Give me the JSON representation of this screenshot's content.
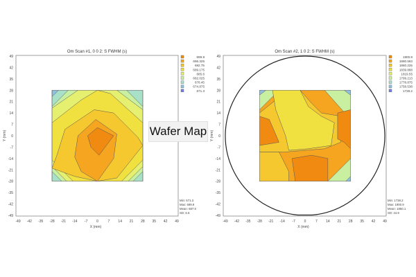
{
  "overlay_label": "Wafer Map",
  "chart_data": [
    {
      "type": "heatmap",
      "title": "Om Scan #1, 0 0 2: S FWHM (s)",
      "xlabel": "X (mm)",
      "ylabel": "Y (mm)",
      "xlim": [
        -49,
        49
      ],
      "ylim": [
        -49,
        49
      ],
      "ticks": [
        -49,
        -42,
        -35,
        -28,
        -21,
        -14,
        -7,
        0,
        7,
        14,
        21,
        28,
        35,
        42,
        49
      ],
      "scan_area": [
        -28,
        28
      ],
      "legend": [
        "699.9",
        "696.325",
        "692.75",
        "689.175",
        "685.6",
        "682.025",
        "678.45",
        "674.875",
        "671.3"
      ],
      "legend_colors": [
        "#f08a10",
        "#f5a520",
        "#f5c830",
        "#f0e040",
        "#e6f070",
        "#c8f0a0",
        "#a8e0c8",
        "#90c0e0",
        "#7080e0"
      ],
      "stats": [
        "Min: 671.3",
        "Max: 699.9",
        "Mean: 687.6",
        "SD: 6.6"
      ],
      "legend_position": "right"
    },
    {
      "type": "heatmap",
      "title": "Om Scan #2, 1 0 2: S FWHM (s)",
      "xlabel": "X (mm)",
      "ylabel": "Y (mm)",
      "xlim": [
        -49,
        49
      ],
      "ylim": [
        -49,
        49
      ],
      "ticks": [
        -49,
        -42,
        -35,
        -28,
        -21,
        -14,
        -7,
        0,
        7,
        14,
        21,
        28,
        35,
        42,
        49
      ],
      "scan_area": [
        -28,
        28
      ],
      "legend": [
        "1900.9",
        "1880.563",
        "1860.225",
        "1839.888",
        "1819.55",
        "1799.213",
        "1778.875",
        "1758.538",
        "1738.2"
      ],
      "legend_colors": [
        "#f08a10",
        "#f5a520",
        "#f5c830",
        "#f0e040",
        "#e6f070",
        "#c8f0a0",
        "#a8e0c8",
        "#90c0e0",
        "#7080e0"
      ],
      "stats": [
        "Min: 1738.2",
        "Max: 1900.9",
        "Mean: 1850.1",
        "SD: 44.9"
      ],
      "legend_position": "right"
    }
  ]
}
